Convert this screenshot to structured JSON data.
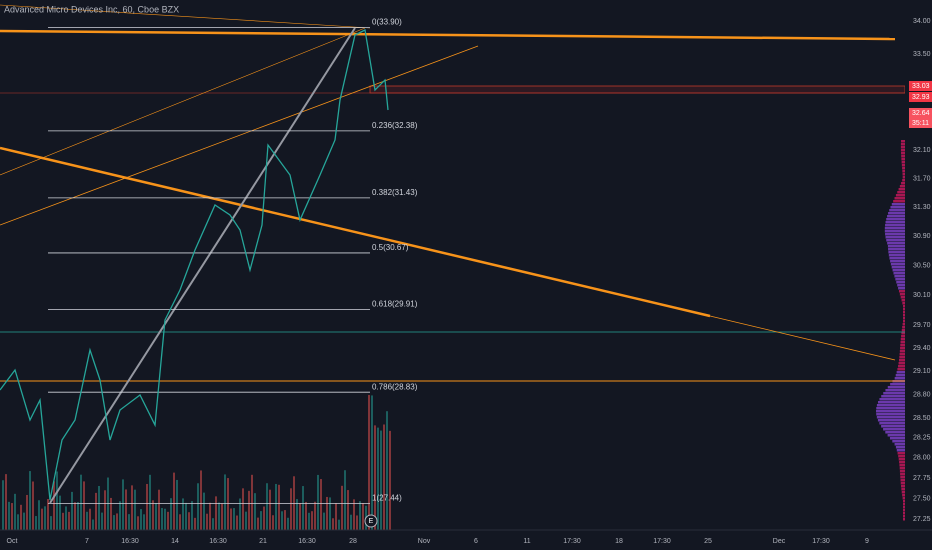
{
  "header": {
    "title": "Advanced Micro Devices Inc, 60, Cboe BZX"
  },
  "price_axis": [
    "34.00",
    "33.50",
    "32.10",
    "31.70",
    "31.30",
    "30.90",
    "30.50",
    "30.10",
    "29.70",
    "29.40",
    "29.10",
    "28.80",
    "28.50",
    "28.25",
    "28.00",
    "27.75",
    "27.50",
    "27.25"
  ],
  "price_tags": [
    "33.03",
    "32.93",
    "32.64",
    "35:11"
  ],
  "fib_levels": [
    "0(33.90)",
    "0.236(32.38)",
    "0.382(31.43)",
    "0.5(30.67)",
    "0.618(29.91)",
    "0.786(28.83)",
    "1(27.44)"
  ],
  "time_axis": [
    "Oct",
    "7",
    "16:30",
    "14",
    "16:30",
    "21",
    "16:30",
    "28",
    "Nov",
    "6",
    "11",
    "17:30",
    "18",
    "17:30",
    "25",
    "Dec",
    "17:30",
    "9"
  ],
  "earnings_marker": "E"
}
